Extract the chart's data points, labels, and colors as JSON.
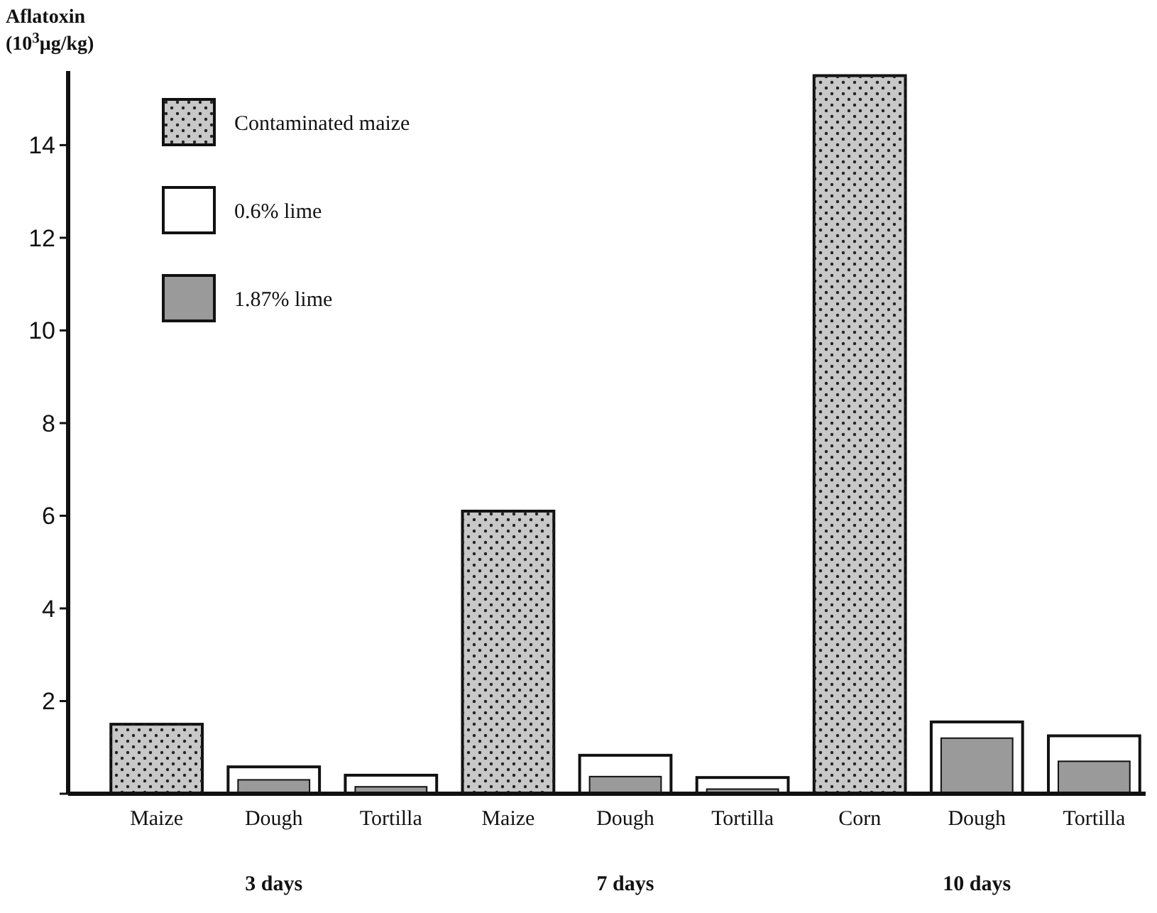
{
  "chart_data": {
    "type": "bar",
    "ylabel": "Aflatoxin\n(10$^{3}$μg/kg)",
    "categories": [
      "Maize",
      "Dough",
      "Tortilla",
      "Maize",
      "Dough",
      "Tortilla",
      "Corn",
      "Dough",
      "Tortilla"
    ],
    "series": [
      {
        "name": "Contaminated maize",
        "color": "#c8c8c8",
        "values": [
          1.5,
          null,
          null,
          6.1,
          null,
          null,
          15.5,
          null,
          null
        ]
      },
      {
        "name": "0.6% lime",
        "color": "#ffffff",
        "values": [
          null,
          0.58,
          0.4,
          null,
          0.83,
          0.35,
          null,
          1.55,
          1.25
        ]
      },
      {
        "name": "1.87% lime",
        "color": "#9a9a9a",
        "values": [
          null,
          0.3,
          0.15,
          null,
          0.37,
          0.1,
          null,
          1.2,
          0.7
        ]
      }
    ],
    "ylim": [
      0,
      15.6
    ],
    "yticks": [
      {
        "value": 0,
        "label": null
      },
      2,
      4,
      6,
      8,
      10,
      12,
      14
    ],
    "legend": "top left",
    "annotations": [
      "3 days",
      "7 days",
      "10 days"
    ]
  }
}
